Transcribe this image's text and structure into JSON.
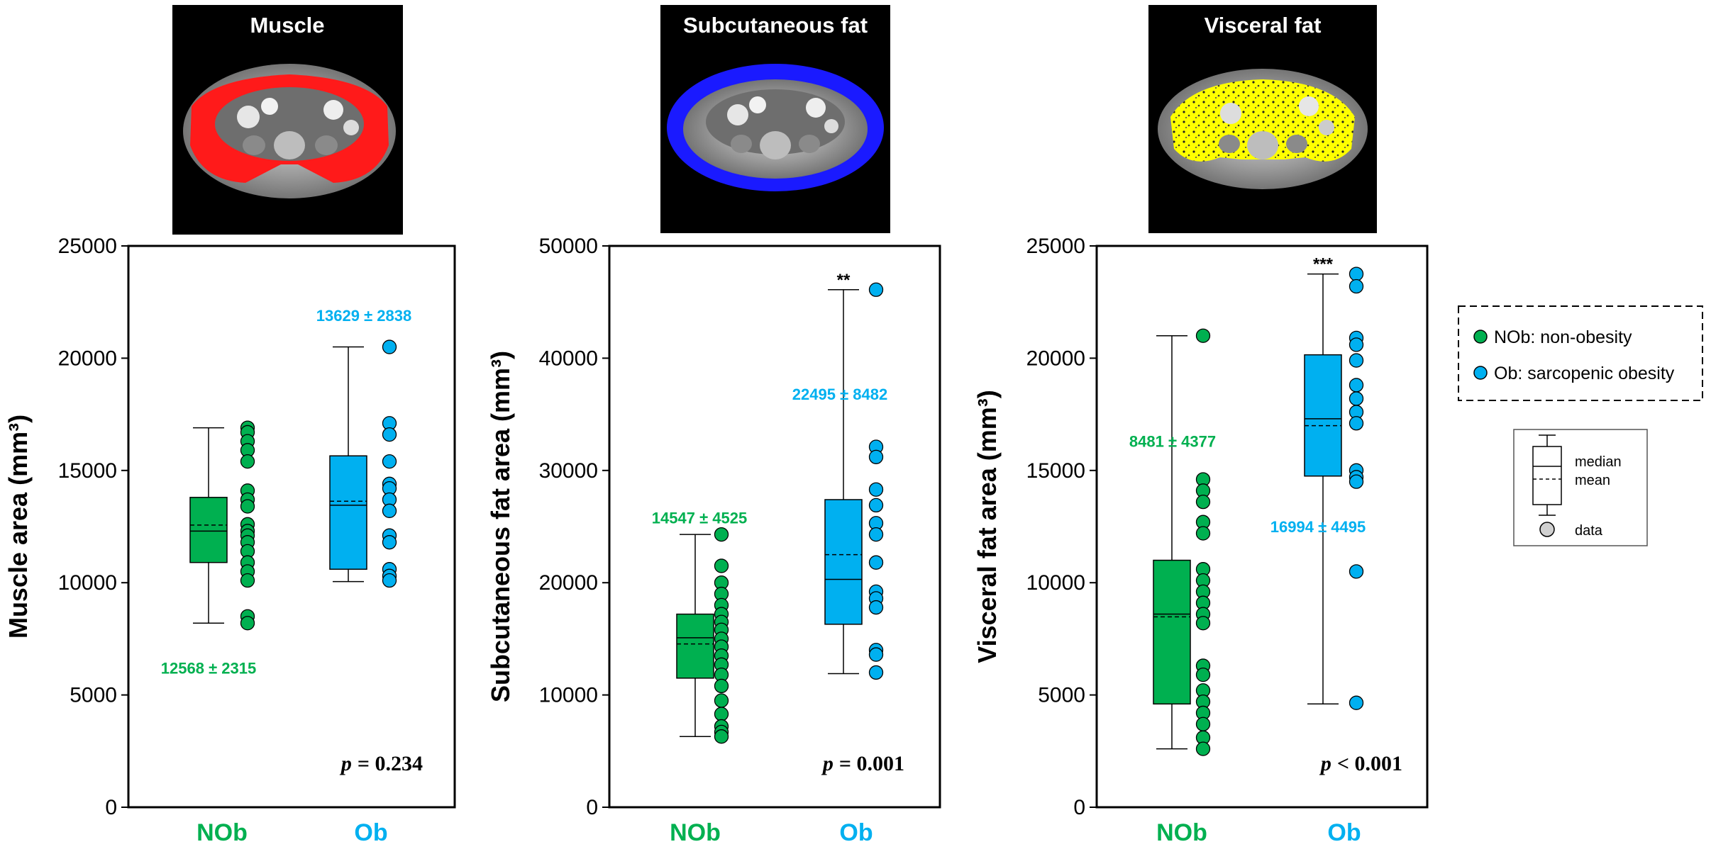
{
  "colors": {
    "nob": "#00b050",
    "ob": "#00b0f0",
    "muscle": "#ff1a1a",
    "subcut": "#1a1aff",
    "visceral": "#ffff00"
  },
  "chart_data": [
    {
      "type": "box",
      "image_title": "Muscle",
      "mask_color": "#ff1a1a",
      "ylabel": "Muscle area (mm³)",
      "ylim": [
        0,
        25000
      ],
      "yticks": [
        0,
        5000,
        10000,
        15000,
        20000,
        25000
      ],
      "ytick_labels": [
        "0",
        "5000",
        "10000",
        "15000",
        "20000",
        "25000"
      ],
      "categories": [
        "NOb",
        "Ob"
      ],
      "groups": [
        {
          "name": "NOb",
          "q1": 10900,
          "median": 12300,
          "mean": 12568,
          "q3": 13800,
          "min": 8200,
          "max": 16900,
          "points": [
            16900,
            16700,
            16300,
            15900,
            15400,
            14100,
            13700,
            13400,
            12600,
            12300,
            12100,
            11800,
            11400,
            10900,
            10500,
            10100,
            8500,
            8200
          ],
          "stat_label": "12568 ± 2315",
          "stat_y": 6200
        },
        {
          "name": "Ob",
          "q1": 10600,
          "median": 13450,
          "mean": 13629,
          "q3": 15650,
          "min": 10050,
          "max": 20500,
          "points": [
            20500,
            17100,
            16600,
            15400,
            14400,
            14200,
            13700,
            13200,
            12100,
            11800,
            10600,
            10300,
            10100
          ],
          "stat_label": "13629 ± 2838",
          "stat_y": 21900
        }
      ],
      "significance": "",
      "p_label": "= 0.234"
    },
    {
      "type": "box",
      "image_title": "Subcutaneous fat",
      "mask_color": "#1a1aff",
      "ylabel": "Subcutaneous fat area (mm³)",
      "ylim": [
        0,
        50000
      ],
      "yticks": [
        0,
        10000,
        20000,
        30000,
        40000,
        50000
      ],
      "ytick_labels": [
        "0",
        "10000",
        "20000",
        "30000",
        "40000",
        "50000"
      ],
      "categories": [
        "NOb",
        "Ob"
      ],
      "groups": [
        {
          "name": "NOb",
          "q1": 11500,
          "median": 15100,
          "mean": 14547,
          "q3": 17200,
          "min": 6300,
          "max": 24300,
          "points": [
            24300,
            21500,
            20000,
            19000,
            18000,
            17200,
            16500,
            15800,
            15000,
            14300,
            13500,
            12700,
            11800,
            10800,
            9500,
            8300,
            7200,
            6700,
            6300
          ],
          "stat_label": "14547 ± 4525",
          "stat_y": 25800
        },
        {
          "name": "Ob",
          "q1": 16300,
          "median": 20300,
          "mean": 22495,
          "q3": 27400,
          "min": 11900,
          "max": 46100,
          "points": [
            46100,
            32100,
            31200,
            28300,
            26900,
            25300,
            24300,
            21800,
            19200,
            18600,
            17800,
            14000,
            13600,
            12000
          ],
          "stat_label": "22495 ± 8482",
          "stat_y": 36800
        }
      ],
      "significance": "**",
      "p_label": "= 0.001"
    },
    {
      "type": "box",
      "image_title": "Visceral fat",
      "mask_color": "#ffff00",
      "ylabel": "Visceral fat area (mm³)",
      "ylim": [
        0,
        25000
      ],
      "yticks": [
        0,
        5000,
        10000,
        15000,
        20000,
        25000
      ],
      "ytick_labels": [
        "0",
        "5000",
        "10000",
        "15000",
        "20000",
        "25000"
      ],
      "categories": [
        "NOb",
        "Ob"
      ],
      "groups": [
        {
          "name": "NOb",
          "q1": 4600,
          "median": 8600,
          "mean": 8481,
          "q3": 11000,
          "min": 2600,
          "max": 21000,
          "points": [
            21000,
            14600,
            14100,
            13600,
            12700,
            12200,
            10600,
            10100,
            9600,
            9100,
            8600,
            8200,
            6300,
            5900,
            5200,
            4700,
            4200,
            3700,
            3100,
            2600
          ],
          "stat_label": "8481 ± 4377",
          "stat_y": 16300
        },
        {
          "name": "Ob",
          "q1": 14750,
          "median": 17300,
          "mean": 16994,
          "q3": 20150,
          "min": 4600,
          "max": 23750,
          "points": [
            23750,
            23200,
            20900,
            20600,
            19900,
            18800,
            18200,
            17600,
            17100,
            15000,
            14700,
            14500,
            10500,
            4650
          ],
          "stat_label": "16994 ± 4495",
          "stat_y": 12500
        }
      ],
      "significance": "***",
      "p_label": "< 0.001"
    }
  ],
  "legend": {
    "p_letter": "p",
    "items": [
      {
        "label": "NOb: non-obesity"
      },
      {
        "label": "Ob: sarcopenic obesity"
      }
    ],
    "key": {
      "median": "median",
      "mean": "mean",
      "data": "data"
    }
  }
}
